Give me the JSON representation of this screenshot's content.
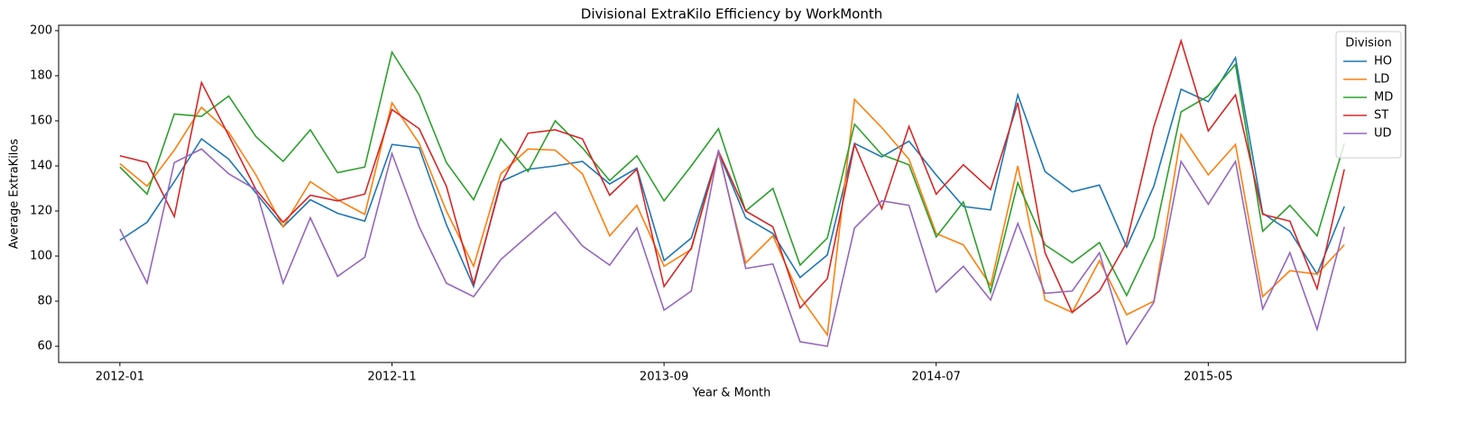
{
  "chart_data": {
    "type": "line",
    "title": "Divisional ExtraKilo Efficiency by WorkMonth",
    "xlabel": "Year & Month",
    "ylabel": "Average ExtraKilos",
    "x": [
      "2012-01",
      "2012-02",
      "2012-03",
      "2012-04",
      "2012-05",
      "2012-06",
      "2012-07",
      "2012-08",
      "2012-09",
      "2012-10",
      "2012-11",
      "2012-12",
      "2013-01",
      "2013-02",
      "2013-03",
      "2013-04",
      "2013-05",
      "2013-06",
      "2013-07",
      "2013-08",
      "2013-09",
      "2013-10",
      "2013-11",
      "2013-12",
      "2014-01",
      "2014-02",
      "2014-03",
      "2014-04",
      "2014-05",
      "2014-06",
      "2014-07",
      "2014-08",
      "2014-09",
      "2014-10",
      "2014-11",
      "2014-12",
      "2015-01",
      "2015-02",
      "2015-03",
      "2015-04",
      "2015-05",
      "2015-06",
      "2015-07",
      "2015-08",
      "2015-09",
      "2015-10"
    ],
    "xticks": [
      "2012-01",
      "2012-11",
      "2013-09",
      "2014-07",
      "2015-05"
    ],
    "ylim": [
      52.8,
      202.4
    ],
    "yticks": [
      60,
      80,
      100,
      120,
      140,
      160,
      180,
      200
    ],
    "legend_title": "Division",
    "legend": "upper right",
    "series": [
      {
        "name": "HO",
        "color": "#1f77b4",
        "values": [
          107,
          115,
          133,
          152,
          143,
          128,
          113,
          125,
          119,
          115.5,
          149.5,
          148,
          114,
          86.5,
          133,
          138.5,
          140,
          142,
          132,
          139,
          98,
          108,
          146,
          117,
          110,
          90.5,
          100.5,
          150,
          144,
          151,
          136,
          122,
          120.5,
          171.5,
          137.5,
          128.5,
          131.5,
          104,
          131,
          174,
          168.5,
          188,
          119,
          111,
          92,
          122
        ]
      },
      {
        "name": "LD",
        "color": "#ff7f0e",
        "values": [
          141,
          131,
          147,
          166,
          155,
          136,
          113,
          133,
          125,
          118.5,
          168,
          150,
          120,
          95.5,
          136.5,
          147.5,
          147,
          136.5,
          109,
          122.5,
          95.5,
          103,
          146,
          97,
          109,
          82,
          65,
          169.5,
          157,
          143,
          110,
          105,
          87,
          140,
          80.5,
          75,
          98,
          74,
          80,
          154,
          136,
          149.5,
          82,
          93.5,
          92,
          105
        ]
      },
      {
        "name": "MD",
        "color": "#2ca02c",
        "values": [
          139.5,
          127.5,
          163,
          162,
          171,
          153,
          142,
          156,
          137,
          139.5,
          190.5,
          171.5,
          141.5,
          125,
          152,
          137.5,
          160,
          148,
          133.5,
          144.5,
          124.5,
          140,
          156.5,
          120,
          130,
          96,
          108,
          158.5,
          145,
          140.5,
          108.5,
          124,
          84,
          132.5,
          105,
          97,
          106,
          82.5,
          108,
          164,
          171,
          185,
          111,
          122.5,
          109,
          150
        ]
      },
      {
        "name": "ST",
        "color": "#d62728",
        "values": [
          144.5,
          141.5,
          117.5,
          177,
          153.5,
          129.5,
          115,
          127,
          124.5,
          127.5,
          165,
          156.5,
          131,
          87.5,
          132,
          154.5,
          156,
          152,
          127,
          138.5,
          86.5,
          103.5,
          146.5,
          120,
          113,
          77,
          90,
          149.5,
          121,
          157.5,
          127.5,
          140.5,
          129.5,
          168,
          101.5,
          75,
          84.5,
          106,
          157.5,
          195.5,
          155.5,
          171.5,
          118.5,
          115.5,
          85.5,
          138.5
        ]
      },
      {
        "name": "UD",
        "color": "#9467bd",
        "values": [
          112,
          88,
          141.5,
          147.5,
          136.5,
          129.5,
          88,
          117,
          91,
          99.5,
          145.5,
          113,
          88,
          82,
          98.5,
          109,
          119.5,
          104.5,
          96,
          112.5,
          76,
          84.5,
          147,
          94.5,
          96.5,
          62,
          60,
          112.5,
          124.5,
          122.5,
          84,
          95.5,
          80.5,
          114.5,
          83.5,
          84.5,
          101.5,
          61,
          79.5,
          142,
          123,
          142,
          76.5,
          101.5,
          67.5,
          113
        ]
      }
    ]
  }
}
